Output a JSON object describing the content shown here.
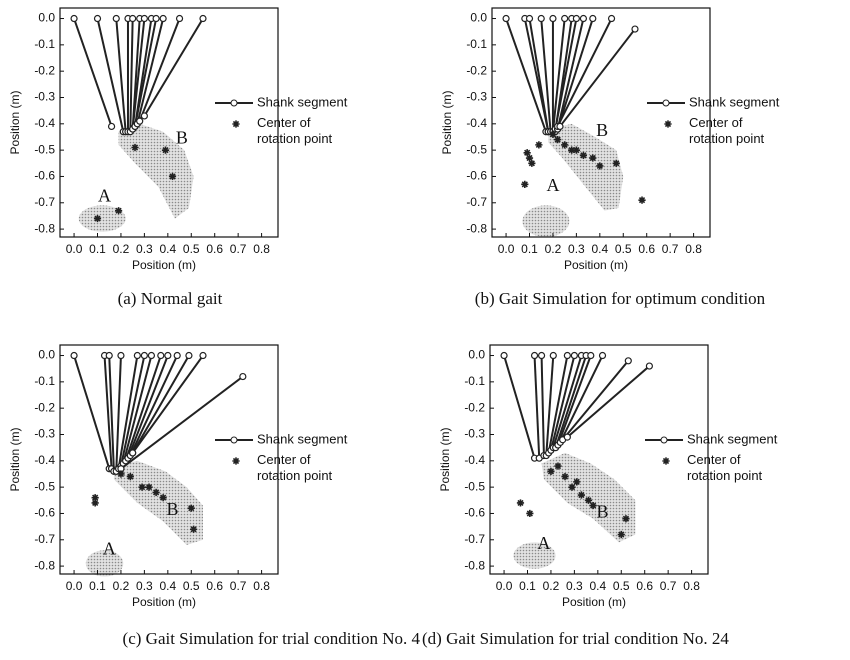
{
  "chart_data": [
    {
      "type": "scatter",
      "caption": "(a) Normal gait",
      "xlabel": "Position (m)",
      "ylabel": "Position (m)",
      "xlim": [
        -0.06,
        0.87
      ],
      "ylim": [
        -0.83,
        0.04
      ],
      "xticks": [
        {
          "value": 0,
          "label": "0.0"
        },
        0.1,
        0.2,
        0.3,
        0.4,
        0.5,
        0.6,
        0.7,
        0.8
      ],
      "yticks": [
        {
          "value": 0,
          "label": "0.0"
        },
        -0.1,
        -0.2,
        -0.3,
        -0.4,
        -0.5,
        -0.6,
        -0.7,
        -0.8
      ],
      "annotations": [
        "A",
        "B"
      ],
      "series": [
        {
          "name": "Shank segment",
          "color": "#222222",
          "x0": [
            0.0,
            0.1,
            0.18,
            0.23,
            0.25,
            0.28,
            0.3,
            0.33,
            0.35,
            0.38,
            0.45,
            0.55
          ],
          "y0": [
            0,
            0,
            0,
            0,
            0,
            0,
            0,
            0,
            0,
            0,
            0,
            0
          ],
          "x1": [
            0.16,
            0.21,
            0.22,
            0.23,
            0.24,
            0.25,
            0.25,
            0.26,
            0.26,
            0.27,
            0.28,
            0.3
          ],
          "y1": [
            -0.41,
            -0.43,
            -0.43,
            -0.43,
            -0.43,
            -0.42,
            -0.42,
            -0.41,
            -0.41,
            -0.4,
            -0.39,
            -0.37
          ]
        },
        {
          "name": "Center of rotation point",
          "color": "#222222",
          "x": [
            0.26,
            0.39,
            0.42,
            0.19,
            0.1
          ],
          "y": [
            -0.49,
            -0.5,
            -0.6,
            -0.73,
            -0.76
          ]
        }
      ]
    },
    {
      "type": "scatter",
      "caption": "(b) Gait Simulation for optimum condition",
      "xlabel": "Position (m)",
      "ylabel": "Position (m)",
      "xlim": [
        -0.06,
        0.87
      ],
      "ylim": [
        -0.83,
        0.04
      ],
      "xticks": [
        {
          "value": 0,
          "label": "0.0"
        },
        0.1,
        0.2,
        0.3,
        0.4,
        0.5,
        0.6,
        0.7,
        0.8
      ],
      "yticks": [
        {
          "value": 0,
          "label": "0.0"
        },
        -0.1,
        -0.2,
        -0.3,
        -0.4,
        -0.5,
        -0.6,
        -0.7,
        -0.8
      ],
      "annotations": [
        "A",
        "B"
      ],
      "series": [
        {
          "name": "Shank segment",
          "color": "#222222",
          "x0": [
            0.0,
            0.08,
            0.1,
            0.15,
            0.2,
            0.25,
            0.28,
            0.3,
            0.33,
            0.37,
            0.45,
            0.55
          ],
          "y0": [
            0,
            0,
            0,
            0,
            0,
            0,
            0,
            0,
            0,
            0,
            0,
            -0.04
          ],
          "x1": [
            0.17,
            0.18,
            0.18,
            0.19,
            0.2,
            0.2,
            0.21,
            0.21,
            0.22,
            0.22,
            0.22,
            0.23
          ],
          "y1": [
            -0.43,
            -0.43,
            -0.43,
            -0.43,
            -0.43,
            -0.43,
            -0.43,
            -0.42,
            -0.42,
            -0.42,
            -0.41,
            -0.41
          ]
        },
        {
          "name": "Center of rotation point",
          "color": "#222222",
          "x": [
            0.09,
            0.1,
            0.11,
            0.14,
            0.08,
            0.2,
            0.22,
            0.25,
            0.28,
            0.3,
            0.33,
            0.37,
            0.4,
            0.47,
            0.58
          ],
          "y": [
            -0.51,
            -0.53,
            -0.55,
            -0.48,
            -0.63,
            -0.44,
            -0.46,
            -0.48,
            -0.5,
            -0.5,
            -0.52,
            -0.53,
            -0.56,
            -0.55,
            -0.69
          ]
        }
      ]
    },
    {
      "type": "scatter",
      "caption": "(c) Gait Simulation for trial condition No. 4",
      "xlabel": "Position (m)",
      "ylabel": "Position (m)",
      "xlim": [
        -0.06,
        0.87
      ],
      "ylim": [
        -0.83,
        0.04
      ],
      "xticks": [
        {
          "value": 0,
          "label": "0.0"
        },
        0.1,
        0.2,
        0.3,
        0.4,
        0.5,
        0.6,
        0.7,
        0.8
      ],
      "yticks": [
        {
          "value": 0,
          "label": "0.0"
        },
        -0.1,
        -0.2,
        -0.3,
        -0.4,
        -0.5,
        -0.6,
        -0.7,
        -0.8
      ],
      "annotations": [
        "A",
        "B"
      ],
      "series": [
        {
          "name": "Shank segment",
          "color": "#222222",
          "x0": [
            0.0,
            0.13,
            0.15,
            0.2,
            0.27,
            0.3,
            0.33,
            0.37,
            0.4,
            0.44,
            0.49,
            0.55,
            0.72
          ],
          "y0": [
            0,
            0,
            0,
            0,
            0,
            0,
            0,
            0,
            0,
            0,
            0,
            0,
            -0.08
          ],
          "x1": [
            0.15,
            0.16,
            0.17,
            0.18,
            0.19,
            0.2,
            0.21,
            0.22,
            0.23,
            0.24,
            0.25,
            0.25,
            0.2
          ],
          "y1": [
            -0.43,
            -0.43,
            -0.44,
            -0.44,
            -0.43,
            -0.42,
            -0.41,
            -0.4,
            -0.39,
            -0.38,
            -0.37,
            -0.37,
            -0.43
          ]
        },
        {
          "name": "Center of rotation point",
          "color": "#222222",
          "x": [
            0.09,
            0.09,
            0.2,
            0.24,
            0.29,
            0.32,
            0.35,
            0.38,
            0.5,
            0.51
          ],
          "y": [
            -0.54,
            -0.56,
            -0.45,
            -0.46,
            -0.5,
            -0.5,
            -0.52,
            -0.54,
            -0.58,
            -0.66
          ]
        }
      ]
    },
    {
      "type": "scatter",
      "caption": "(d) Gait Simulation for trial condition No. 24",
      "xlabel": "Position (m)",
      "ylabel": "Position (m)",
      "xlim": [
        -0.06,
        0.87
      ],
      "ylim": [
        -0.83,
        0.04
      ],
      "xticks": [
        {
          "value": 0,
          "label": "0.0"
        },
        0.1,
        0.2,
        0.3,
        0.4,
        0.5,
        0.6,
        0.7,
        0.8
      ],
      "yticks": [
        {
          "value": 0,
          "label": "0.0"
        },
        -0.1,
        -0.2,
        -0.3,
        -0.4,
        -0.5,
        -0.6,
        -0.7,
        -0.8
      ],
      "annotations": [
        "A",
        "B"
      ],
      "series": [
        {
          "name": "Shank segment",
          "color": "#222222",
          "x0": [
            0.0,
            0.13,
            0.16,
            0.21,
            0.27,
            0.3,
            0.33,
            0.35,
            0.37,
            0.42,
            0.53,
            0.62
          ],
          "y0": [
            0,
            0,
            0,
            0,
            0,
            0,
            0,
            0,
            0,
            0,
            -0.02,
            -0.04
          ],
          "x1": [
            0.13,
            0.15,
            0.17,
            0.18,
            0.19,
            0.2,
            0.21,
            0.22,
            0.23,
            0.24,
            0.25,
            0.27
          ],
          "y1": [
            -0.39,
            -0.39,
            -0.38,
            -0.38,
            -0.37,
            -0.36,
            -0.35,
            -0.35,
            -0.34,
            -0.33,
            -0.32,
            -0.31
          ]
        },
        {
          "name": "Center of rotation point",
          "color": "#222222",
          "x": [
            0.07,
            0.11,
            0.2,
            0.23,
            0.26,
            0.29,
            0.31,
            0.33,
            0.36,
            0.38,
            0.52,
            0.5
          ],
          "y": [
            -0.56,
            -0.6,
            -0.44,
            -0.42,
            -0.46,
            -0.5,
            -0.48,
            -0.53,
            -0.55,
            -0.57,
            -0.62,
            -0.68
          ]
        }
      ]
    }
  ]
}
